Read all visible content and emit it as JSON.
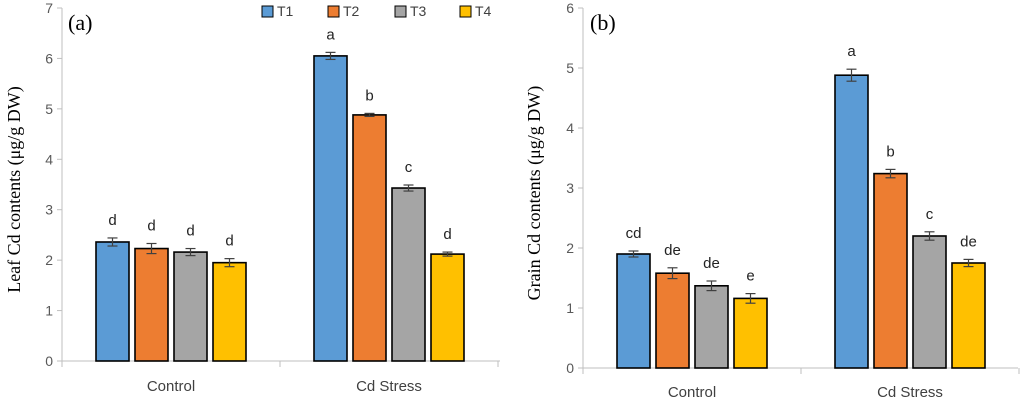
{
  "legend": [
    "T1",
    "T2",
    "T3",
    "T4"
  ],
  "colors": {
    "T1": "#5b9bd5",
    "T2": "#ed7d31",
    "T3": "#a5a5a5",
    "T4": "#ffc000"
  },
  "chart_data": [
    {
      "type": "bar",
      "panel_label": "(a)",
      "ylabel": "Leaf Cd contents (μg/g DW)",
      "ylim": [
        0,
        7
      ],
      "yticks": [
        "0",
        "1",
        "2",
        "3",
        "4",
        "5",
        "6",
        "7"
      ],
      "categories": [
        "Control",
        "Cd Stress"
      ],
      "series": [
        {
          "name": "T1",
          "values": [
            2.36,
            6.05
          ],
          "errors": [
            0.08,
            0.07
          ],
          "letters": [
            "d",
            "a"
          ]
        },
        {
          "name": "T2",
          "values": [
            2.23,
            4.88
          ],
          "errors": [
            0.1,
            0.03
          ],
          "letters": [
            "d",
            "b"
          ]
        },
        {
          "name": "T3",
          "values": [
            2.16,
            3.43
          ],
          "errors": [
            0.07,
            0.06
          ],
          "letters": [
            "d",
            "c"
          ]
        },
        {
          "name": "T4",
          "values": [
            1.95,
            2.12
          ],
          "errors": [
            0.08,
            0.04
          ],
          "letters": [
            "d",
            "d"
          ]
        }
      ]
    },
    {
      "type": "bar",
      "panel_label": "(b)",
      "ylabel": "Grain Cd contents (μg/g DW)",
      "ylim": [
        0,
        6
      ],
      "yticks": [
        "0",
        "1",
        "2",
        "3",
        "4",
        "5",
        "6"
      ],
      "categories": [
        "Control",
        "Cd Stress"
      ],
      "series": [
        {
          "name": "T1",
          "values": [
            1.9,
            4.88
          ],
          "errors": [
            0.05,
            0.1
          ],
          "letters": [
            "cd",
            "a"
          ]
        },
        {
          "name": "T2",
          "values": [
            1.58,
            3.24
          ],
          "errors": [
            0.09,
            0.07
          ],
          "letters": [
            "de",
            "b"
          ]
        },
        {
          "name": "T3",
          "values": [
            1.37,
            2.2
          ],
          "errors": [
            0.08,
            0.07
          ],
          "letters": [
            "de",
            "c"
          ]
        },
        {
          "name": "T4",
          "values": [
            1.16,
            1.75
          ],
          "errors": [
            0.08,
            0.06
          ],
          "letters": [
            "e",
            "de"
          ]
        }
      ]
    }
  ]
}
